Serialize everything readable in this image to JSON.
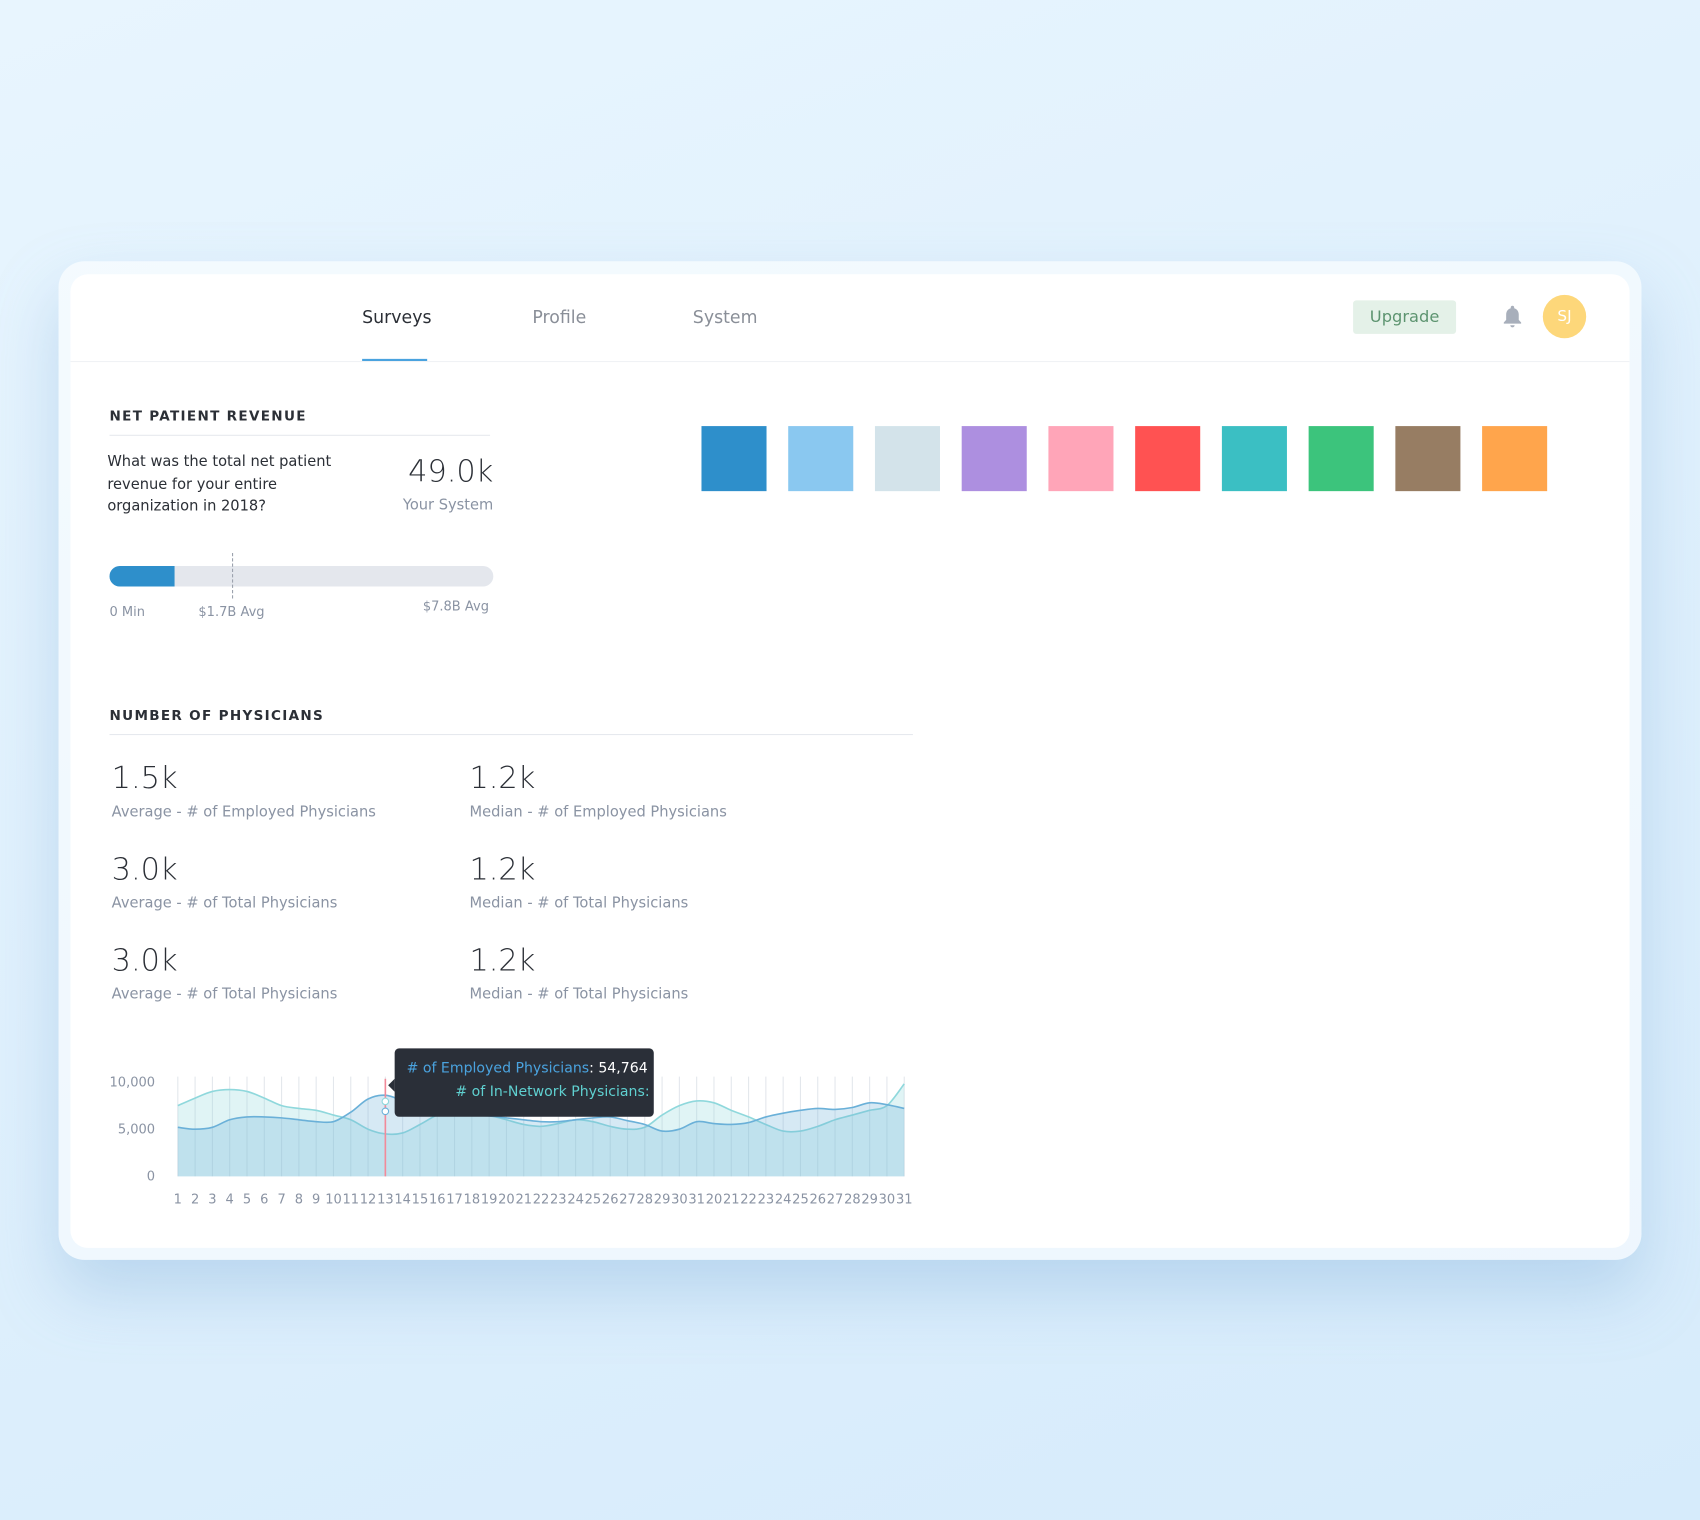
{
  "nav": {
    "tabs": [
      "Surveys",
      "Profile",
      "System"
    ],
    "upgrade": "Upgrade",
    "avatar": "SJ"
  },
  "revenue": {
    "title": "NET PATIENT REVENUE",
    "question": "What was the total net patient revenue for your entire organization in 2018?",
    "value": "49.0k",
    "value_caption": "Your System",
    "min_label": "0 Min",
    "avg_label": "$1.7B Avg",
    "max_label": "$7.8B Avg"
  },
  "swatches": [
    "#2e8fcb",
    "#8ac8f0",
    "#d3e3ea",
    "#ad8fe0",
    "#ffa5b8",
    "#ff5252",
    "#3bbfc3",
    "#3cc47c",
    "#977d63",
    "#ffa54c"
  ],
  "physicians": {
    "title": "NUMBER OF PHYSICIANS",
    "stats": [
      {
        "value": "1.5k",
        "label": "Average - # of Employed Physicians"
      },
      {
        "value": "1.2k",
        "label": "Median - # of Employed Physicians"
      },
      {
        "value": "3.0k",
        "label": "Average - # of Total Physicians"
      },
      {
        "value": "1.2k",
        "label": "Median - # of Total Physicians"
      },
      {
        "value": "3.0k",
        "label": "Average - # of Total Physicians"
      },
      {
        "value": "1.2k",
        "label": "Median - # of Total Physicians"
      }
    ]
  },
  "chart_data": {
    "type": "area",
    "ylim": [
      0,
      10000
    ],
    "yticks": [
      0,
      {
        "value": 5000,
        "label": "5,000"
      },
      {
        "value": 10000,
        "label": "10,000"
      }
    ],
    "categories": [
      "1",
      "2",
      "3",
      "4",
      "5",
      "6",
      "7",
      "8",
      "9",
      "10",
      "11",
      "12",
      "13",
      "14",
      "15",
      "16",
      "17",
      "18",
      "19",
      "20",
      "21",
      "22",
      "23",
      "24",
      "25",
      "26",
      "27",
      "28",
      "29",
      "30",
      "31",
      "20",
      "21",
      "22",
      "23",
      "24",
      "25",
      "26",
      "27",
      "28",
      "29",
      "30",
      "31"
    ],
    "series": [
      {
        "name": "# of Employed Physicians",
        "color": "#6ab0d8",
        "values": [
          5200,
          5000,
          5200,
          6000,
          6300,
          6300,
          6200,
          6000,
          5800,
          5800,
          6800,
          8200,
          8600,
          8000,
          7200,
          7000,
          6800,
          6500,
          6400,
          6200,
          6000,
          5800,
          5800,
          6000,
          6200,
          6300,
          5900,
          5500,
          4800,
          5000,
          5800,
          5600,
          5500,
          5700,
          6300,
          6700,
          7000,
          7200,
          7100,
          7300,
          7800,
          7600,
          7200
        ]
      },
      {
        "name": "# of In-Network Physicians:",
        "color": "#8fd8dc",
        "values": [
          7500,
          8300,
          9000,
          9200,
          9000,
          8300,
          7500,
          7200,
          7000,
          6500,
          6000,
          5000,
          4500,
          4600,
          5500,
          6500,
          7000,
          7000,
          6500,
          6000,
          5500,
          5300,
          5600,
          6000,
          5800,
          5300,
          5000,
          5200,
          6500,
          7500,
          8000,
          7800,
          7000,
          6300,
          5500,
          4800,
          4800,
          5300,
          6000,
          6500,
          7000,
          7500,
          9800
        ]
      }
    ],
    "tooltip_value": ": 54,764"
  }
}
